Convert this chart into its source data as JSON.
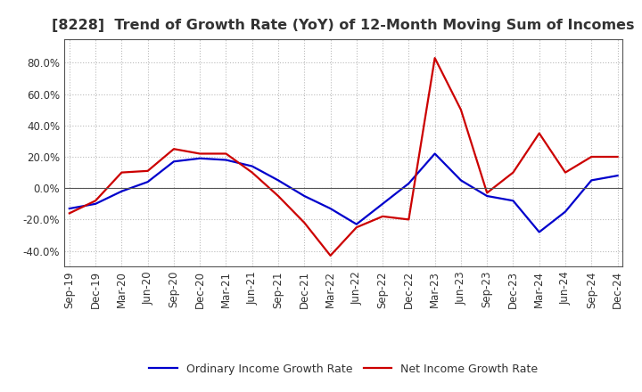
{
  "title": "[8228]  Trend of Growth Rate (YoY) of 12-Month Moving Sum of Incomes",
  "x_labels": [
    "Sep-19",
    "Dec-19",
    "Mar-20",
    "Jun-20",
    "Sep-20",
    "Dec-20",
    "Mar-21",
    "Jun-21",
    "Sep-21",
    "Dec-21",
    "Mar-22",
    "Jun-22",
    "Sep-22",
    "Dec-22",
    "Mar-23",
    "Jun-23",
    "Sep-23",
    "Dec-23",
    "Mar-24",
    "Jun-24",
    "Sep-24",
    "Dec-24"
  ],
  "ordinary_income": [
    -13.0,
    -10.0,
    -2.0,
    4.0,
    17.0,
    19.0,
    18.0,
    14.0,
    5.0,
    -5.0,
    -13.0,
    -23.0,
    -10.0,
    3.0,
    22.0,
    5.0,
    -5.0,
    -8.0,
    -28.0,
    -15.0,
    5.0,
    8.0
  ],
  "net_income": [
    -16.0,
    -8.0,
    10.0,
    11.0,
    25.0,
    22.0,
    22.0,
    10.0,
    -5.0,
    -22.0,
    -43.0,
    -25.0,
    -18.0,
    -20.0,
    83.0,
    50.0,
    -3.0,
    10.0,
    35.0,
    10.0,
    20.0,
    20.0
  ],
  "ordinary_color": "#0000cc",
  "net_color": "#cc0000",
  "background_color": "#ffffff",
  "ylim": [
    -50,
    95
  ],
  "yticks": [
    -40.0,
    -20.0,
    0.0,
    20.0,
    40.0,
    60.0,
    80.0
  ],
  "legend_labels": [
    "Ordinary Income Growth Rate",
    "Net Income Growth Rate"
  ],
  "grid_color": "#bbbbbb",
  "title_fontsize": 11.5,
  "title_color": "#333333",
  "tick_fontsize": 8.5
}
